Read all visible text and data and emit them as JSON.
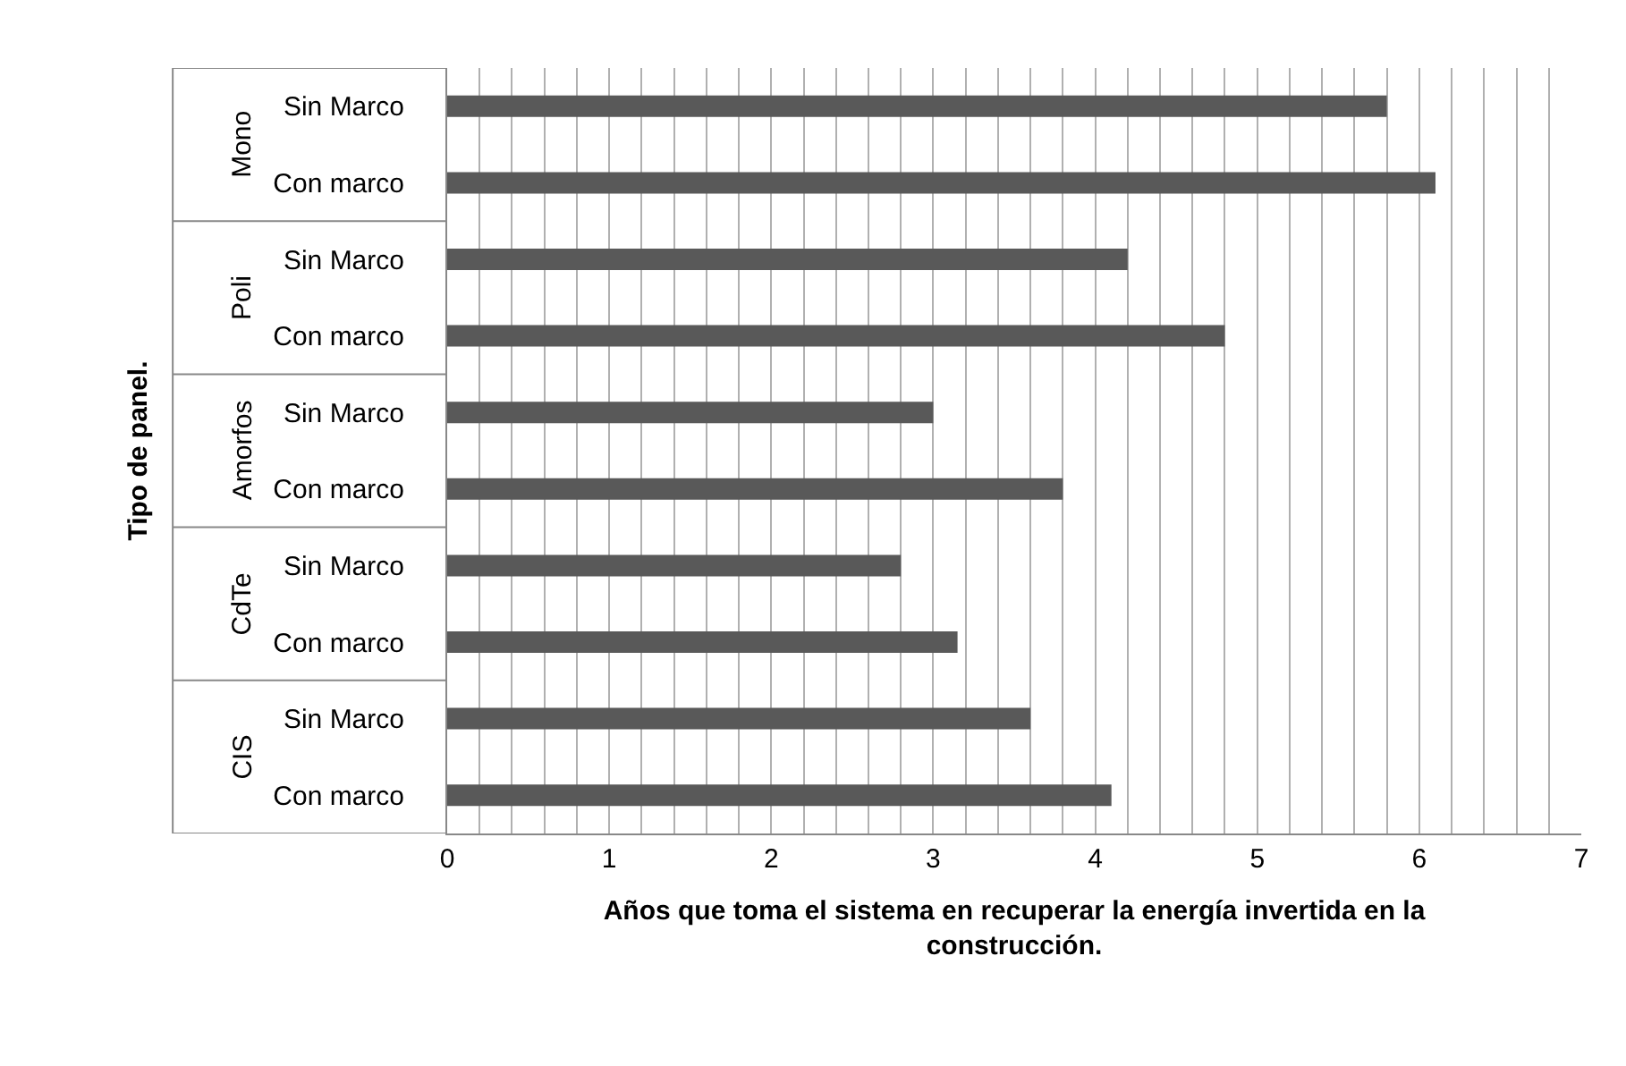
{
  "chart_data": {
    "type": "bar",
    "orientation": "horizontal",
    "xlabel": "Años que toma el sistema en recuperar la energía invertida en la construcción.",
    "ylabel": "Tipo de panel.",
    "categories": [
      "Sin Marco",
      "Con marco",
      "Sin Marco",
      "Con marco",
      "Sin Marco",
      "Con marco",
      "Sin Marco",
      "Con marco",
      "Sin Marco",
      "Con marco"
    ],
    "values": [
      5.8,
      6.1,
      4.2,
      4.8,
      3.0,
      3.8,
      2.8,
      3.15,
      3.6,
      4.1
    ],
    "color": "#595959",
    "annotations": [
      "Mono",
      "Poli",
      "Amorfos",
      "CdTe",
      "CIS"
    ],
    "xlim": [
      0,
      7
    ],
    "xticks": [
      0,
      {
        "value": 0.2,
        "label": null
      },
      {
        "value": 0.4,
        "label": null
      },
      {
        "value": 0.6,
        "label": null
      },
      {
        "value": 0.8,
        "label": null
      },
      1,
      {
        "value": 1.2,
        "label": null
      },
      {
        "value": 1.4,
        "label": null
      },
      {
        "value": 1.6,
        "label": null
      },
      {
        "value": 1.8,
        "label": null
      },
      2,
      {
        "value": 2.2,
        "label": null
      },
      {
        "value": 2.4,
        "label": null
      },
      {
        "value": 2.6,
        "label": null
      },
      {
        "value": 2.8,
        "label": null
      },
      3,
      {
        "value": 3.2,
        "label": null
      },
      {
        "value": 3.4,
        "label": null
      },
      {
        "value": 3.6,
        "label": null
      },
      {
        "value": 3.8,
        "label": null
      },
      4,
      {
        "value": 4.2,
        "label": null
      },
      {
        "value": 4.4,
        "label": null
      },
      {
        "value": 4.6,
        "label": null
      },
      {
        "value": 4.8,
        "label": null
      },
      5,
      {
        "value": 5.2,
        "label": null
      },
      {
        "value": 5.4,
        "label": null
      },
      {
        "value": 5.6,
        "label": null
      },
      {
        "value": 5.8,
        "label": null
      },
      6,
      {
        "value": 6.2,
        "label": null
      },
      {
        "value": 6.4,
        "label": null
      },
      {
        "value": 6.6,
        "label": null
      },
      {
        "value": 6.8,
        "label": null
      },
      7
    ],
    "grid": "x"
  }
}
